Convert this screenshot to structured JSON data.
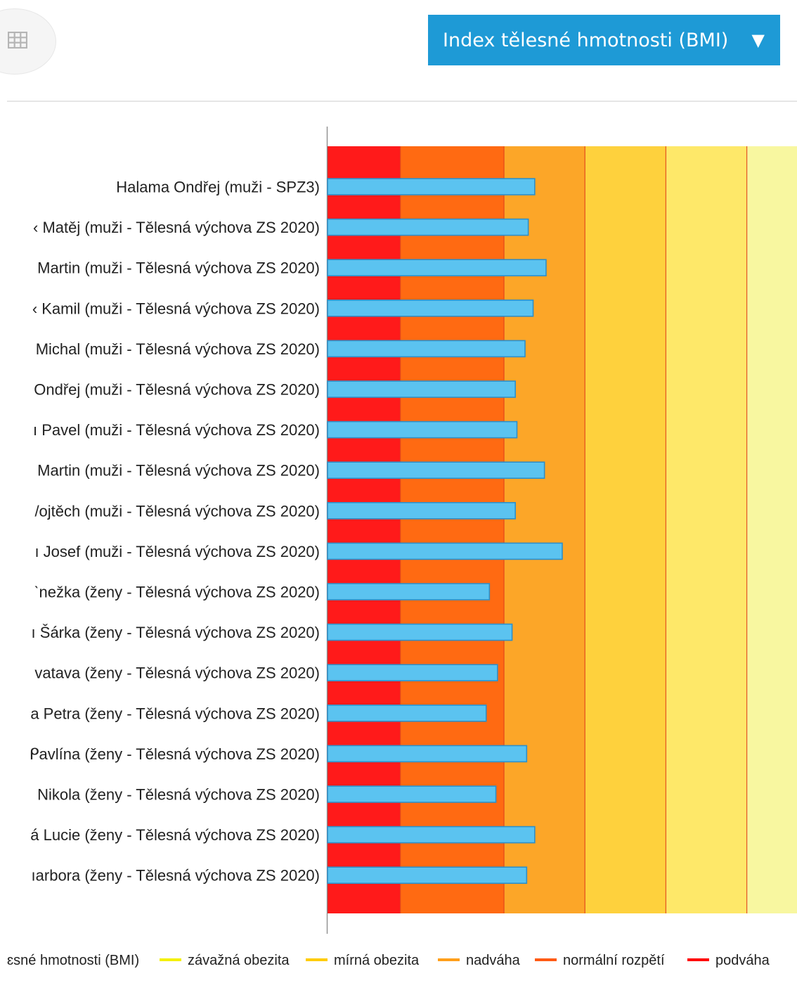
{
  "toolbar": {
    "table_icon": "table-grid-icon",
    "dropdown_label": "Index tělesné hmotnosti (BMI)",
    "dropdown_caret": "▼",
    "accent_color": "#1e9ad6"
  },
  "chart_data": {
    "type": "bar",
    "orientation": "horizontal",
    "categories": [
      "Halama Ondřej (muži - SPZ3)",
      "‹ Matěj (muži - Tělesná výchova ZS 2020)",
      "Martin (muži - Tělesná výchova ZS 2020)",
      "‹ Kamil (muži - Tělesná výchova ZS 2020)",
      "Michal (muži - Tělesná výchova ZS 2020)",
      "Ondřej (muži - Tělesná výchova ZS 2020)",
      "ı Pavel (muži - Tělesná výchova ZS 2020)",
      "Martin (muži - Tělesná výchova ZS 2020)",
      "/ojtěch (muži - Tělesná výchova ZS 2020)",
      "ı Josef (muži - Tělesná výchova ZS 2020)",
      "ˋnežka (ženy - Tělesná výchova ZS 2020)",
      "ı Šárka (ženy - Tělesná výchova ZS 2020)",
      "vatava (ženy - Tělesná výchova ZS 2020)",
      "a Petra (ženy - Tělesná výchova ZS 2020)",
      "ᑭavlína (ženy - Tělesná výchova ZS 2020)",
      "Nikola (ženy - Tělesná výchova ZS 2020)",
      "á Lucie (ženy - Tělesná výchova ZS 2020)",
      "ıarbora (ženy - Tělesná výchova ZS 2020)"
    ],
    "series": [
      {
        "name": "Index tělesné hmotnosti (BMI)",
        "color": "#5bc3f0",
        "values": [
          26.8,
          26.4,
          27.5,
          26.7,
          26.2,
          25.6,
          25.7,
          27.4,
          25.6,
          28.5,
          24.0,
          25.4,
          24.5,
          23.8,
          26.3,
          24.4,
          26.8,
          26.3
        ]
      }
    ],
    "xlim": [
      14,
      43
    ],
    "bands": [
      {
        "name": "podváha",
        "from": 0,
        "to": 18.5,
        "color": "#ff1a1a",
        "legend_color": "#ff0000"
      },
      {
        "name": "normální rozpětí",
        "from": 18.5,
        "to": 24.9,
        "color": "#ff6a12",
        "legend_color": "#ff5a14"
      },
      {
        "name": "nadváha",
        "from": 24.9,
        "to": 29.9,
        "color": "#fca628",
        "legend_color": "#ff9f1a"
      },
      {
        "name": "mírná obezita",
        "from": 29.9,
        "to": 34.9,
        "color": "#fed13d",
        "legend_color": "#ffcc00"
      },
      {
        "name": "závažná obezita",
        "from": 34.9,
        "to": 39.9,
        "color": "#fee869",
        "legend_color": "#f4f000"
      }
    ],
    "background_band_color": "#f8f7a0",
    "legend": {
      "position": "bottom",
      "series_label_visible": "ɛsné hmotnosti (BMI)",
      "items": [
        "závažná obezita",
        "mírná obezita",
        "nadváha",
        "normální rozpětí",
        "podváha"
      ]
    }
  }
}
